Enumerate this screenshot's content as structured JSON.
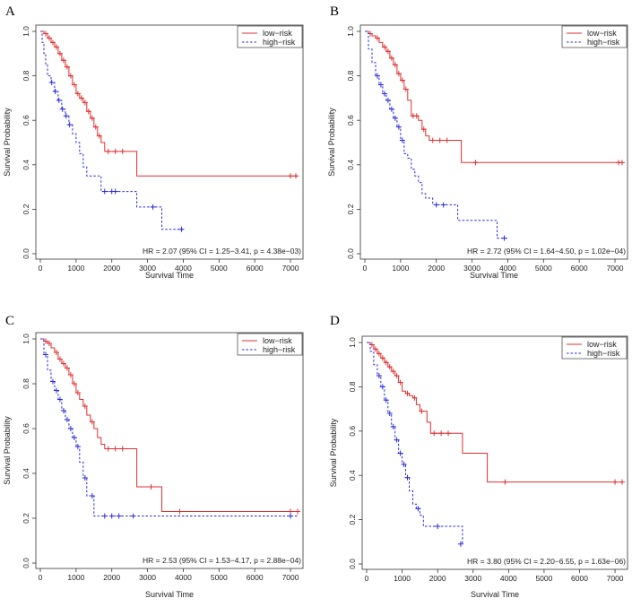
{
  "figure": {
    "colors": {
      "low": "#e03030",
      "high": "#2a2ae0",
      "axis": "#333333"
    }
  },
  "chart_data": [
    {
      "panel": "A",
      "type": "line",
      "xlabel": "Survival Time",
      "ylabel": "Survival Probability",
      "xlim": [
        0,
        7200
      ],
      "ylim": [
        0,
        1
      ],
      "xticks": [
        0,
        1000,
        2000,
        3000,
        4000,
        5000,
        6000,
        7000
      ],
      "yticks": [
        0.0,
        0.2,
        0.4,
        0.6,
        0.8,
        1.0
      ],
      "ytick_labels": [
        "0.0",
        "0.2",
        "0.4",
        "0.6",
        "0.8",
        "1.0"
      ],
      "legend": [
        "low−risk",
        "high−risk"
      ],
      "annotation": "HR = 2.07 (95% CI = 1.25−3.41, p = 4.38e−03)",
      "series": [
        {
          "name": "low−risk",
          "style": "solid",
          "x": [
            0,
            100,
            200,
            300,
            400,
            500,
            600,
            700,
            800,
            900,
            1000,
            1100,
            1200,
            1300,
            1400,
            1500,
            1600,
            1700,
            1800,
            2000,
            2600,
            2700,
            7200
          ],
          "y": [
            1.0,
            0.99,
            0.97,
            0.95,
            0.93,
            0.9,
            0.87,
            0.84,
            0.8,
            0.76,
            0.72,
            0.7,
            0.68,
            0.64,
            0.61,
            0.57,
            0.53,
            0.5,
            0.46,
            0.46,
            0.46,
            0.35,
            0.35
          ],
          "censor_x": [
            150,
            250,
            350,
            450,
            550,
            650,
            750,
            850,
            950,
            1050,
            1150,
            1250,
            1350,
            1450,
            1550,
            1650,
            1900,
            2100,
            2300,
            7000,
            7150
          ],
          "censor_y": [
            0.99,
            0.97,
            0.95,
            0.93,
            0.9,
            0.87,
            0.84,
            0.8,
            0.76,
            0.72,
            0.7,
            0.68,
            0.64,
            0.61,
            0.57,
            0.53,
            0.46,
            0.46,
            0.46,
            0.35,
            0.35
          ]
        },
        {
          "name": "high−risk",
          "style": "dashed",
          "x": [
            0,
            50,
            100,
            150,
            200,
            300,
            400,
            500,
            600,
            700,
            800,
            900,
            1000,
            1100,
            1200,
            1300,
            1400,
            1500,
            1700,
            2300,
            2700,
            3200,
            3400,
            4000
          ],
          "y": [
            1.0,
            0.95,
            0.9,
            0.85,
            0.8,
            0.77,
            0.73,
            0.69,
            0.65,
            0.62,
            0.58,
            0.54,
            0.5,
            0.45,
            0.39,
            0.35,
            0.35,
            0.35,
            0.28,
            0.28,
            0.21,
            0.21,
            0.11,
            0.11
          ],
          "censor_x": [
            320,
            420,
            520,
            620,
            720,
            820,
            1800,
            2000,
            2100,
            3150,
            3950
          ],
          "censor_y": [
            0.77,
            0.73,
            0.69,
            0.65,
            0.62,
            0.58,
            0.28,
            0.28,
            0.28,
            0.21,
            0.11
          ]
        }
      ]
    },
    {
      "panel": "B",
      "type": "line",
      "xlabel": "Survival Time",
      "ylabel": "Survival Probability",
      "xlim": [
        0,
        7200
      ],
      "ylim": [
        0,
        1
      ],
      "xticks": [
        0,
        1000,
        2000,
        3000,
        4000,
        5000,
        6000,
        7000
      ],
      "yticks": [
        0.0,
        0.2,
        0.4,
        0.6,
        0.8,
        1.0
      ],
      "ytick_labels": [
        "0.0",
        "0.2",
        "0.4",
        "0.6",
        "0.8",
        "1.0"
      ],
      "legend": [
        "low−risk",
        "high−risk"
      ],
      "annotation": "HR = 2.72 (95% CI = 1.64−4.50, p = 1.02e−04)",
      "series": [
        {
          "name": "low−risk",
          "style": "solid",
          "x": [
            0,
            100,
            200,
            300,
            400,
            500,
            600,
            700,
            800,
            900,
            1000,
            1100,
            1200,
            1300,
            1400,
            1500,
            1600,
            1700,
            1800,
            2600,
            2700,
            7200
          ],
          "y": [
            1.0,
            0.99,
            0.98,
            0.97,
            0.95,
            0.93,
            0.91,
            0.88,
            0.85,
            0.81,
            0.78,
            0.74,
            0.69,
            0.62,
            0.62,
            0.6,
            0.56,
            0.53,
            0.51,
            0.51,
            0.41,
            0.41
          ],
          "censor_x": [
            150,
            350,
            550,
            650,
            750,
            850,
            950,
            1050,
            1150,
            1350,
            1450,
            1650,
            1900,
            2100,
            2300,
            3100,
            7100,
            7200
          ],
          "censor_y": [
            0.99,
            0.97,
            0.93,
            0.91,
            0.88,
            0.85,
            0.81,
            0.78,
            0.74,
            0.62,
            0.62,
            0.56,
            0.51,
            0.51,
            0.51,
            0.41,
            0.41,
            0.41
          ]
        },
        {
          "name": "high−risk",
          "style": "dashed",
          "x": [
            0,
            100,
            200,
            300,
            400,
            500,
            600,
            700,
            800,
            900,
            1000,
            1100,
            1200,
            1300,
            1400,
            1500,
            1600,
            1700,
            1900,
            2300,
            2600,
            3300,
            3700,
            4000
          ],
          "y": [
            1.0,
            0.92,
            0.86,
            0.8,
            0.76,
            0.72,
            0.69,
            0.65,
            0.61,
            0.57,
            0.51,
            0.45,
            0.43,
            0.38,
            0.35,
            0.32,
            0.27,
            0.25,
            0.22,
            0.22,
            0.15,
            0.15,
            0.07,
            0.07
          ],
          "censor_x": [
            350,
            450,
            550,
            650,
            750,
            850,
            950,
            1050,
            2000,
            2200,
            3900
          ],
          "censor_y": [
            0.8,
            0.76,
            0.72,
            0.69,
            0.65,
            0.61,
            0.57,
            0.51,
            0.22,
            0.22,
            0.07
          ]
        }
      ]
    },
    {
      "panel": "C",
      "type": "line",
      "xlabel": "Survival Time",
      "ylabel": "Survival Probability",
      "xlim": [
        0,
        7200
      ],
      "ylim": [
        0,
        1
      ],
      "xticks": [
        0,
        1000,
        2000,
        3000,
        4000,
        5000,
        6000,
        7000
      ],
      "yticks": [
        0.0,
        0.2,
        0.4,
        0.6,
        0.8,
        1.0
      ],
      "ytick_labels": [
        "0.0",
        "0.2",
        "0.4",
        "0.6",
        "0.8",
        "1.0"
      ],
      "legend": [
        "low−risk",
        "high−risk"
      ],
      "annotation": "HR = 2.53 (95% CI = 1.53−4.17, p = 2.88e−04)",
      "series": [
        {
          "name": "low−risk",
          "style": "solid",
          "x": [
            0,
            100,
            200,
            300,
            400,
            500,
            600,
            700,
            800,
            900,
            1000,
            1100,
            1200,
            1300,
            1400,
            1500,
            1600,
            1700,
            1800,
            2600,
            2700,
            3300,
            3400,
            7200
          ],
          "y": [
            1.0,
            0.99,
            0.98,
            0.96,
            0.94,
            0.91,
            0.89,
            0.87,
            0.84,
            0.8,
            0.76,
            0.73,
            0.7,
            0.66,
            0.63,
            0.6,
            0.56,
            0.53,
            0.51,
            0.51,
            0.34,
            0.34,
            0.23,
            0.23
          ],
          "censor_x": [
            150,
            250,
            450,
            550,
            650,
            750,
            850,
            950,
            1050,
            1250,
            1450,
            1900,
            2100,
            2300,
            3100,
            3900,
            7000,
            7200
          ],
          "censor_y": [
            0.99,
            0.98,
            0.94,
            0.91,
            0.89,
            0.87,
            0.84,
            0.8,
            0.76,
            0.7,
            0.63,
            0.51,
            0.51,
            0.51,
            0.34,
            0.23,
            0.23,
            0.23
          ]
        },
        {
          "name": "high−risk",
          "style": "dashed",
          "x": [
            0,
            100,
            200,
            300,
            400,
            500,
            600,
            700,
            800,
            900,
            1000,
            1100,
            1200,
            1300,
            1400,
            1500,
            1600,
            7200
          ],
          "y": [
            1.0,
            0.93,
            0.86,
            0.81,
            0.77,
            0.73,
            0.68,
            0.64,
            0.6,
            0.56,
            0.52,
            0.45,
            0.38,
            0.3,
            0.3,
            0.21,
            0.21,
            0.21
          ],
          "censor_x": [
            150,
            350,
            450,
            550,
            650,
            750,
            850,
            950,
            1050,
            1250,
            1450,
            1800,
            2000,
            2200,
            2600,
            7000
          ],
          "censor_y": [
            0.93,
            0.81,
            0.77,
            0.73,
            0.68,
            0.64,
            0.6,
            0.56,
            0.52,
            0.38,
            0.3,
            0.21,
            0.21,
            0.21,
            0.21,
            0.21
          ]
        }
      ]
    },
    {
      "panel": "D",
      "type": "line",
      "xlabel": "Survival Time",
      "ylabel": "Survival Probability",
      "xlim": [
        0,
        7200
      ],
      "ylim": [
        0,
        1
      ],
      "xticks": [
        0,
        1000,
        2000,
        3000,
        4000,
        5000,
        6000,
        7000
      ],
      "yticks": [
        0.0,
        0.2,
        0.4,
        0.6,
        0.8,
        1.0
      ],
      "ytick_labels": [
        "0.0",
        "0.2",
        "0.4",
        "0.6",
        "0.8",
        "1.0"
      ],
      "legend": [
        "low−risk",
        "high−risk"
      ],
      "annotation": "HR = 3.80 (95% CI = 2.20−6.55, p = 1.63e−06)",
      "series": [
        {
          "name": "low−risk",
          "style": "solid",
          "x": [
            0,
            100,
            200,
            300,
            400,
            500,
            600,
            700,
            800,
            900,
            1000,
            1100,
            1200,
            1300,
            1400,
            1500,
            1700,
            1800,
            2600,
            2700,
            3300,
            3400,
            7200
          ],
          "y": [
            1.0,
            0.99,
            0.97,
            0.95,
            0.93,
            0.91,
            0.89,
            0.87,
            0.85,
            0.82,
            0.78,
            0.77,
            0.76,
            0.75,
            0.72,
            0.69,
            0.64,
            0.59,
            0.59,
            0.5,
            0.5,
            0.37,
            0.37
          ],
          "censor_x": [
            150,
            250,
            350,
            450,
            550,
            650,
            750,
            850,
            950,
            1150,
            1350,
            1550,
            1900,
            2100,
            2300,
            3900,
            7000,
            7200
          ],
          "censor_y": [
            0.99,
            0.97,
            0.95,
            0.93,
            0.91,
            0.89,
            0.87,
            0.85,
            0.82,
            0.77,
            0.75,
            0.69,
            0.59,
            0.59,
            0.59,
            0.37,
            0.37,
            0.37
          ]
        },
        {
          "name": "high−risk",
          "style": "dashed",
          "x": [
            0,
            100,
            200,
            300,
            400,
            500,
            600,
            700,
            800,
            900,
            1000,
            1100,
            1200,
            1300,
            1400,
            1500,
            1600,
            2600,
            2700
          ],
          "y": [
            1.0,
            0.96,
            0.9,
            0.85,
            0.8,
            0.74,
            0.68,
            0.62,
            0.56,
            0.5,
            0.45,
            0.39,
            0.33,
            0.27,
            0.25,
            0.22,
            0.17,
            0.17,
            0.09
          ],
          "censor_x": [
            350,
            450,
            550,
            650,
            750,
            850,
            950,
            1050,
            1150,
            1450,
            2000,
            2650
          ],
          "censor_y": [
            0.85,
            0.8,
            0.74,
            0.68,
            0.62,
            0.56,
            0.5,
            0.45,
            0.39,
            0.25,
            0.17,
            0.09
          ]
        }
      ]
    }
  ]
}
